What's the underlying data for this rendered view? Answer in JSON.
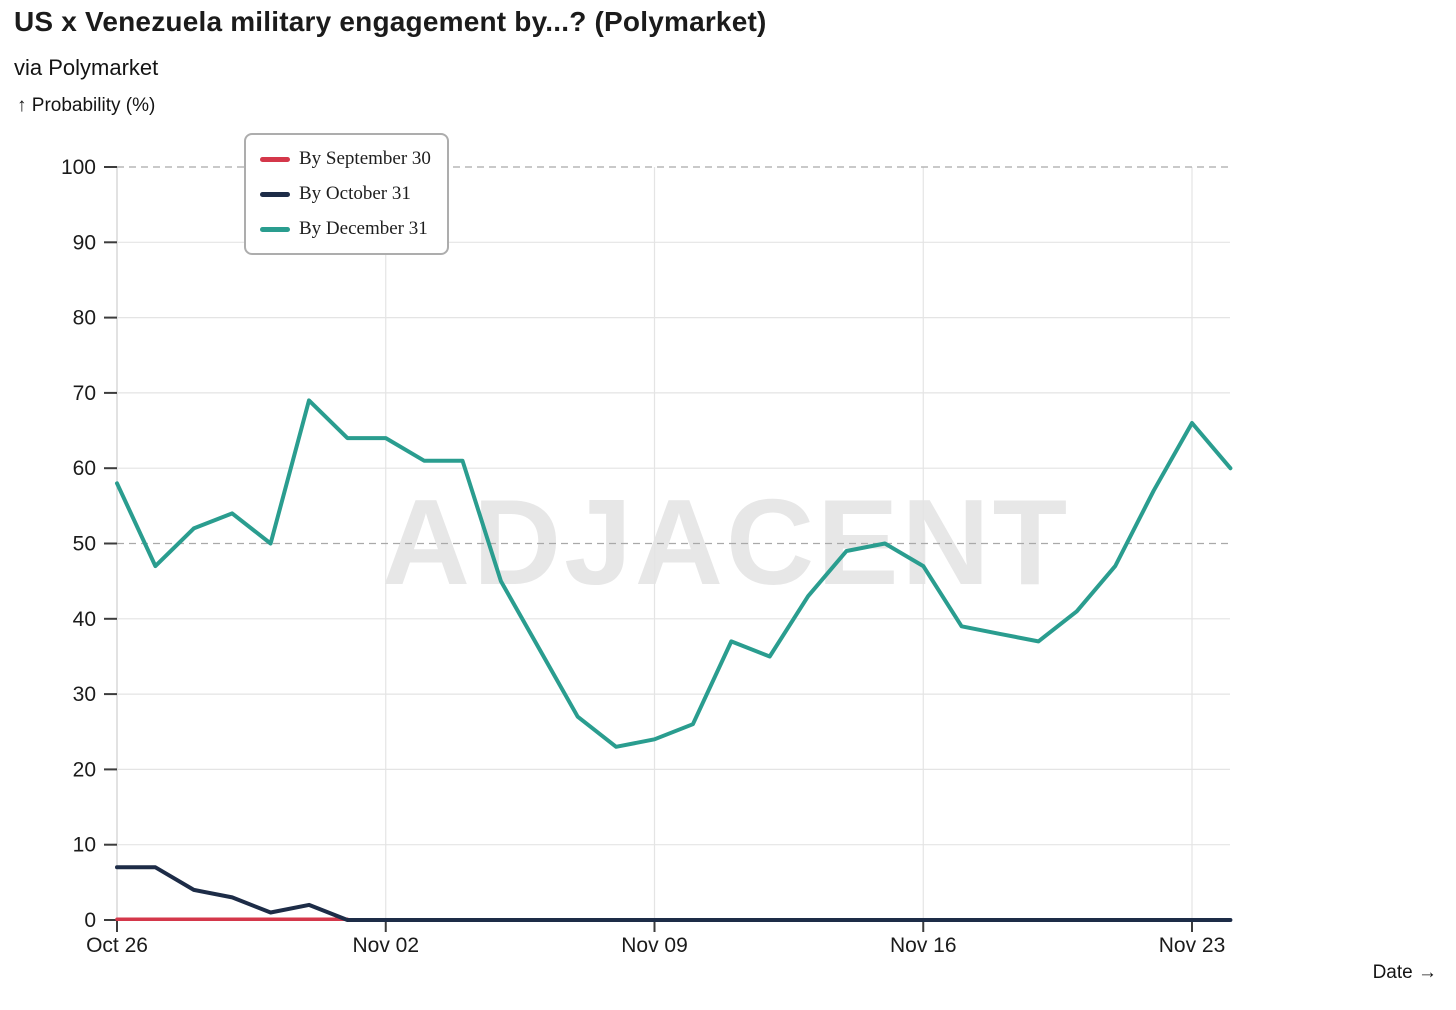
{
  "header": {
    "title": "US x Venezuela military engagement by...? (Polymarket)",
    "subtitle": "via Polymarket",
    "y_axis_title": "↑ Probability (%)",
    "x_axis_title": "Date →"
  },
  "watermark": "ADJACENT",
  "chart_data": {
    "type": "line",
    "title": "US x Venezuela military engagement by...? (Polymarket)",
    "xlabel": "Date",
    "ylabel": "Probability (%)",
    "ylim": [
      0,
      100
    ],
    "grid": "on",
    "legend_position": "top-left",
    "y_ticks": [
      0,
      10,
      20,
      30,
      40,
      50,
      60,
      70,
      80,
      90,
      100
    ],
    "dashed_y_gridlines": [
      25,
      50,
      75,
      100
    ],
    "x": [
      "Oct 26",
      "Oct 27",
      "Oct 28",
      "Oct 29",
      "Oct 30",
      "Oct 31",
      "Nov 01",
      "Nov 02",
      "Nov 03",
      "Nov 04",
      "Nov 05",
      "Nov 06",
      "Nov 07",
      "Nov 08",
      "Nov 09",
      "Nov 10",
      "Nov 11",
      "Nov 12",
      "Nov 13",
      "Nov 14",
      "Nov 15",
      "Nov 16",
      "Nov 17",
      "Nov 18",
      "Nov 19",
      "Nov 20",
      "Nov 21",
      "Nov 22",
      "Nov 23",
      "Nov 24"
    ],
    "x_ticks": [
      {
        "day": 0,
        "label": "Oct 26"
      },
      {
        "day": 7,
        "label": "Nov 02"
      },
      {
        "day": 14,
        "label": "Nov 09"
      },
      {
        "day": 21,
        "label": "Nov 16"
      },
      {
        "day": 28,
        "label": "Nov 23"
      }
    ],
    "series": [
      {
        "name": "By September 30",
        "color": "#d4374a",
        "stroke_width": 3.5,
        "start_day": 0,
        "values": [
          0.1,
          0.1,
          0.1,
          0.1,
          0.1,
          0.1,
          0.1
        ]
      },
      {
        "name": "By October 31",
        "color": "#1d2c47",
        "stroke_width": 4,
        "start_day": 0,
        "values": [
          7,
          7,
          4,
          3,
          1,
          2,
          0,
          0,
          0,
          0,
          0,
          0,
          0,
          0,
          0,
          0,
          0,
          0,
          0,
          0,
          0,
          0,
          0,
          0,
          0,
          0,
          0,
          0,
          0,
          0
        ]
      },
      {
        "name": "By December 31",
        "color": "#2a9d8f",
        "stroke_width": 4,
        "start_day": 0,
        "values": [
          58,
          47,
          52,
          54,
          50,
          69,
          64,
          64,
          61,
          61,
          45,
          36,
          27,
          23,
          24,
          26,
          37,
          35,
          43,
          49,
          50,
          47,
          39,
          38,
          37,
          41,
          47,
          57,
          66,
          60
        ]
      }
    ]
  }
}
